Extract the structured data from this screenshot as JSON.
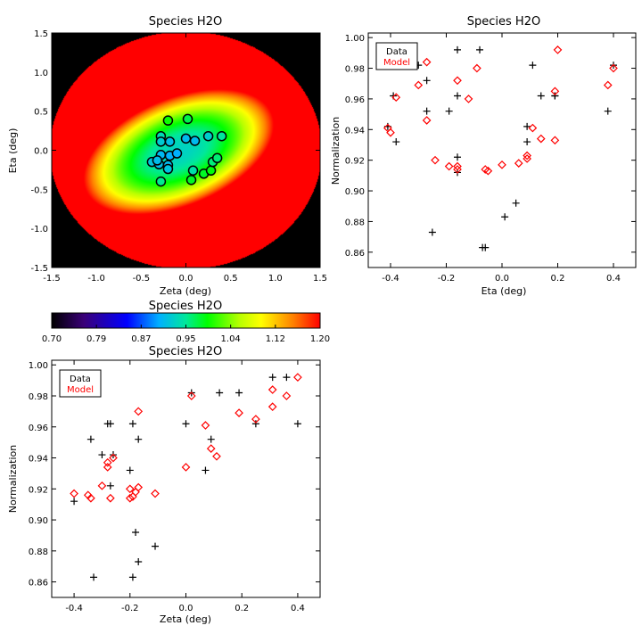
{
  "chart_data": [
    {
      "type": "heatmap",
      "title": "Species H2O",
      "xlabel": "Zeta (deg)",
      "ylabel": "Eta (deg)",
      "xlim": [
        -1.5,
        1.5
      ],
      "ylim": [
        -1.5,
        1.5
      ],
      "xticks": [
        "-1.5",
        "-1.0",
        "-0.5",
        "0.0",
        "0.5",
        "1.0",
        "1.5"
      ],
      "yticks": [
        "-1.5",
        "-1.0",
        "-0.5",
        "0.0",
        "0.5",
        "1.0",
        "1.5"
      ],
      "field": {
        "center": [
          -0.08,
          -0.02
        ],
        "semi_axes": [
          1.55,
          1.45
        ],
        "rotation_deg": 28,
        "core_value": 0.93,
        "edge_value": 1.2,
        "falloff_scale": 0.9
      },
      "circles": [
        [
          -0.2,
          0.38
        ],
        [
          0.02,
          0.4
        ],
        [
          -0.28,
          0.18
        ],
        [
          -0.28,
          0.11
        ],
        [
          -0.18,
          0.11
        ],
        [
          0.0,
          0.15
        ],
        [
          0.1,
          0.12
        ],
        [
          0.25,
          0.18
        ],
        [
          0.4,
          0.18
        ],
        [
          -0.38,
          -0.15
        ],
        [
          -0.3,
          -0.18
        ],
        [
          -0.2,
          -0.19
        ],
        [
          -0.28,
          -0.06
        ],
        [
          -0.18,
          -0.07
        ],
        [
          -0.1,
          -0.04
        ],
        [
          -0.32,
          -0.13
        ],
        [
          -0.2,
          -0.24
        ],
        [
          -0.28,
          -0.4
        ],
        [
          0.08,
          -0.26
        ],
        [
          0.06,
          -0.38
        ],
        [
          0.2,
          -0.3
        ],
        [
          0.28,
          -0.26
        ],
        [
          0.3,
          -0.15
        ],
        [
          0.35,
          -0.1
        ]
      ]
    },
    {
      "type": "colorbar",
      "title": "Species H2O",
      "range": [
        0.7,
        1.2
      ],
      "ticks": [
        "0.70",
        "0.79",
        "0.87",
        "0.95",
        "1.04",
        "1.12",
        "1.20"
      ]
    },
    {
      "type": "scatter",
      "title": "Species H2O",
      "xlabel": "Eta (deg)",
      "ylabel": "Normalization",
      "xlim": [
        -0.48,
        0.48
      ],
      "ylim": [
        0.85,
        1.003
      ],
      "xticks": [
        "-0.4",
        "-0.2",
        "0.0",
        "0.2",
        "0.4"
      ],
      "yticks": [
        "0.86",
        "0.88",
        "0.90",
        "0.92",
        "0.94",
        "0.96",
        "0.98",
        "1.00"
      ],
      "legend": {
        "position": "top-left",
        "entries": [
          "Data",
          "Model"
        ]
      },
      "series": [
        {
          "name": "Data",
          "marker": "plus",
          "color": "#000000",
          "points": [
            [
              -0.41,
              0.942
            ],
            [
              -0.39,
              0.962
            ],
            [
              -0.38,
              0.932
            ],
            [
              -0.3,
              0.982
            ],
            [
              -0.27,
              0.972
            ],
            [
              -0.27,
              0.952
            ],
            [
              -0.25,
              0.873
            ],
            [
              -0.19,
              0.952
            ],
            [
              -0.16,
              0.992
            ],
            [
              -0.16,
              0.962
            ],
            [
              -0.16,
              0.922
            ],
            [
              -0.16,
              0.912
            ],
            [
              -0.08,
              0.992
            ],
            [
              -0.07,
              0.863
            ],
            [
              -0.06,
              0.863
            ],
            [
              0.01,
              0.883
            ],
            [
              0.05,
              0.892
            ],
            [
              0.09,
              0.932
            ],
            [
              0.09,
              0.942
            ],
            [
              0.11,
              0.982
            ],
            [
              0.14,
              0.962
            ],
            [
              0.19,
              0.962
            ],
            [
              0.19,
              0.962
            ],
            [
              0.38,
              0.952
            ],
            [
              0.4,
              0.982
            ]
          ]
        },
        {
          "name": "Model",
          "marker": "diamond",
          "color": "#ff0000",
          "points": [
            [
              -0.41,
              0.941
            ],
            [
              -0.4,
              0.938
            ],
            [
              -0.38,
              0.961
            ],
            [
              -0.3,
              0.969
            ],
            [
              -0.27,
              0.984
            ],
            [
              -0.27,
              0.946
            ],
            [
              -0.24,
              0.92
            ],
            [
              -0.19,
              0.916
            ],
            [
              -0.16,
              0.916
            ],
            [
              -0.16,
              0.914
            ],
            [
              -0.16,
              0.972
            ],
            [
              -0.12,
              0.96
            ],
            [
              -0.09,
              0.98
            ],
            [
              -0.06,
              0.914
            ],
            [
              -0.05,
              0.913
            ],
            [
              0.0,
              0.917
            ],
            [
              0.06,
              0.918
            ],
            [
              0.09,
              0.921
            ],
            [
              0.09,
              0.923
            ],
            [
              0.11,
              0.941
            ],
            [
              0.14,
              0.934
            ],
            [
              0.19,
              0.933
            ],
            [
              0.19,
              0.965
            ],
            [
              0.2,
              0.992
            ],
            [
              0.38,
              0.969
            ],
            [
              0.4,
              0.98
            ]
          ]
        }
      ]
    },
    {
      "type": "scatter",
      "title": "Species H2O",
      "xlabel": "Zeta (deg)",
      "ylabel": "Normalization",
      "xlim": [
        -0.48,
        0.48
      ],
      "ylim": [
        0.85,
        1.003
      ],
      "xticks": [
        "-0.4",
        "-0.2",
        "0.0",
        "0.2",
        "0.4"
      ],
      "yticks": [
        "0.86",
        "0.88",
        "0.90",
        "0.92",
        "0.94",
        "0.96",
        "0.98",
        "1.00"
      ],
      "legend": {
        "position": "top-left",
        "entries": [
          "Data",
          "Model"
        ]
      },
      "series": [
        {
          "name": "Data",
          "marker": "plus",
          "color": "#000000",
          "points": [
            [
              -0.4,
              0.912
            ],
            [
              -0.34,
              0.952
            ],
            [
              -0.33,
              0.863
            ],
            [
              -0.3,
              0.942
            ],
            [
              -0.28,
              0.962
            ],
            [
              -0.27,
              0.962
            ],
            [
              -0.26,
              0.942
            ],
            [
              -0.27,
              0.922
            ],
            [
              -0.2,
              0.932
            ],
            [
              -0.19,
              0.962
            ],
            [
              -0.17,
              0.952
            ],
            [
              -0.18,
              0.892
            ],
            [
              -0.17,
              0.873
            ],
            [
              -0.19,
              0.863
            ],
            [
              -0.11,
              0.883
            ],
            [
              0.0,
              0.962
            ],
            [
              0.02,
              0.982
            ],
            [
              0.07,
              0.932
            ],
            [
              0.09,
              0.952
            ],
            [
              0.12,
              0.982
            ],
            [
              0.19,
              0.982
            ],
            [
              0.25,
              0.962
            ],
            [
              0.31,
              0.992
            ],
            [
              0.36,
              0.992
            ],
            [
              0.4,
              0.962
            ]
          ]
        },
        {
          "name": "Model",
          "marker": "diamond",
          "color": "#ff0000",
          "points": [
            [
              -0.4,
              0.917
            ],
            [
              -0.35,
              0.916
            ],
            [
              -0.34,
              0.914
            ],
            [
              -0.3,
              0.922
            ],
            [
              -0.28,
              0.934
            ],
            [
              -0.28,
              0.937
            ],
            [
              -0.26,
              0.94
            ],
            [
              -0.27,
              0.914
            ],
            [
              -0.2,
              0.92
            ],
            [
              -0.2,
              0.914
            ],
            [
              -0.19,
              0.915
            ],
            [
              -0.18,
              0.918
            ],
            [
              -0.17,
              0.921
            ],
            [
              -0.17,
              0.97
            ],
            [
              -0.11,
              0.917
            ],
            [
              0.0,
              0.934
            ],
            [
              0.02,
              0.98
            ],
            [
              0.07,
              0.961
            ],
            [
              0.09,
              0.946
            ],
            [
              0.11,
              0.941
            ],
            [
              0.19,
              0.969
            ],
            [
              0.25,
              0.965
            ],
            [
              0.31,
              0.984
            ],
            [
              0.31,
              0.973
            ],
            [
              0.36,
              0.98
            ],
            [
              0.4,
              0.992
            ]
          ]
        }
      ]
    }
  ]
}
